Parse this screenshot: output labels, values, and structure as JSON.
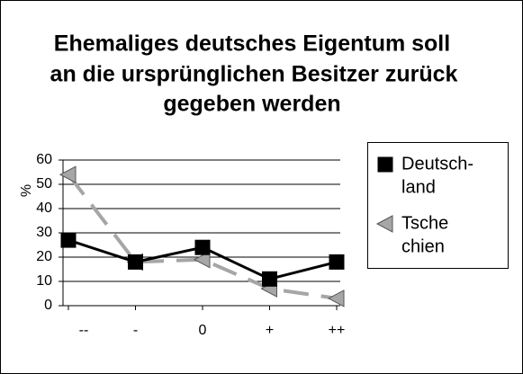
{
  "chart_data": {
    "type": "line",
    "title": [
      "Ehemaliges deutsches Eigentum soll",
      "an die ursprünglichen Besitzer zurück",
      "gegeben werden"
    ],
    "ylabel": "%",
    "categories": [
      "--",
      "-",
      "0",
      "+",
      "++"
    ],
    "series": [
      {
        "name": [
          "Deutsch-",
          "land"
        ],
        "color": "#000000",
        "values": [
          27,
          18,
          24,
          11,
          18
        ]
      },
      {
        "name": [
          "Tsche",
          "chien"
        ],
        "color": "#a6a6a6",
        "values": [
          54,
          18,
          19,
          7,
          3
        ]
      }
    ],
    "ylim": [
      0,
      60
    ],
    "yticks": [
      0,
      10,
      20,
      30,
      40,
      50,
      60
    ],
    "grid": true,
    "legend": "right"
  }
}
